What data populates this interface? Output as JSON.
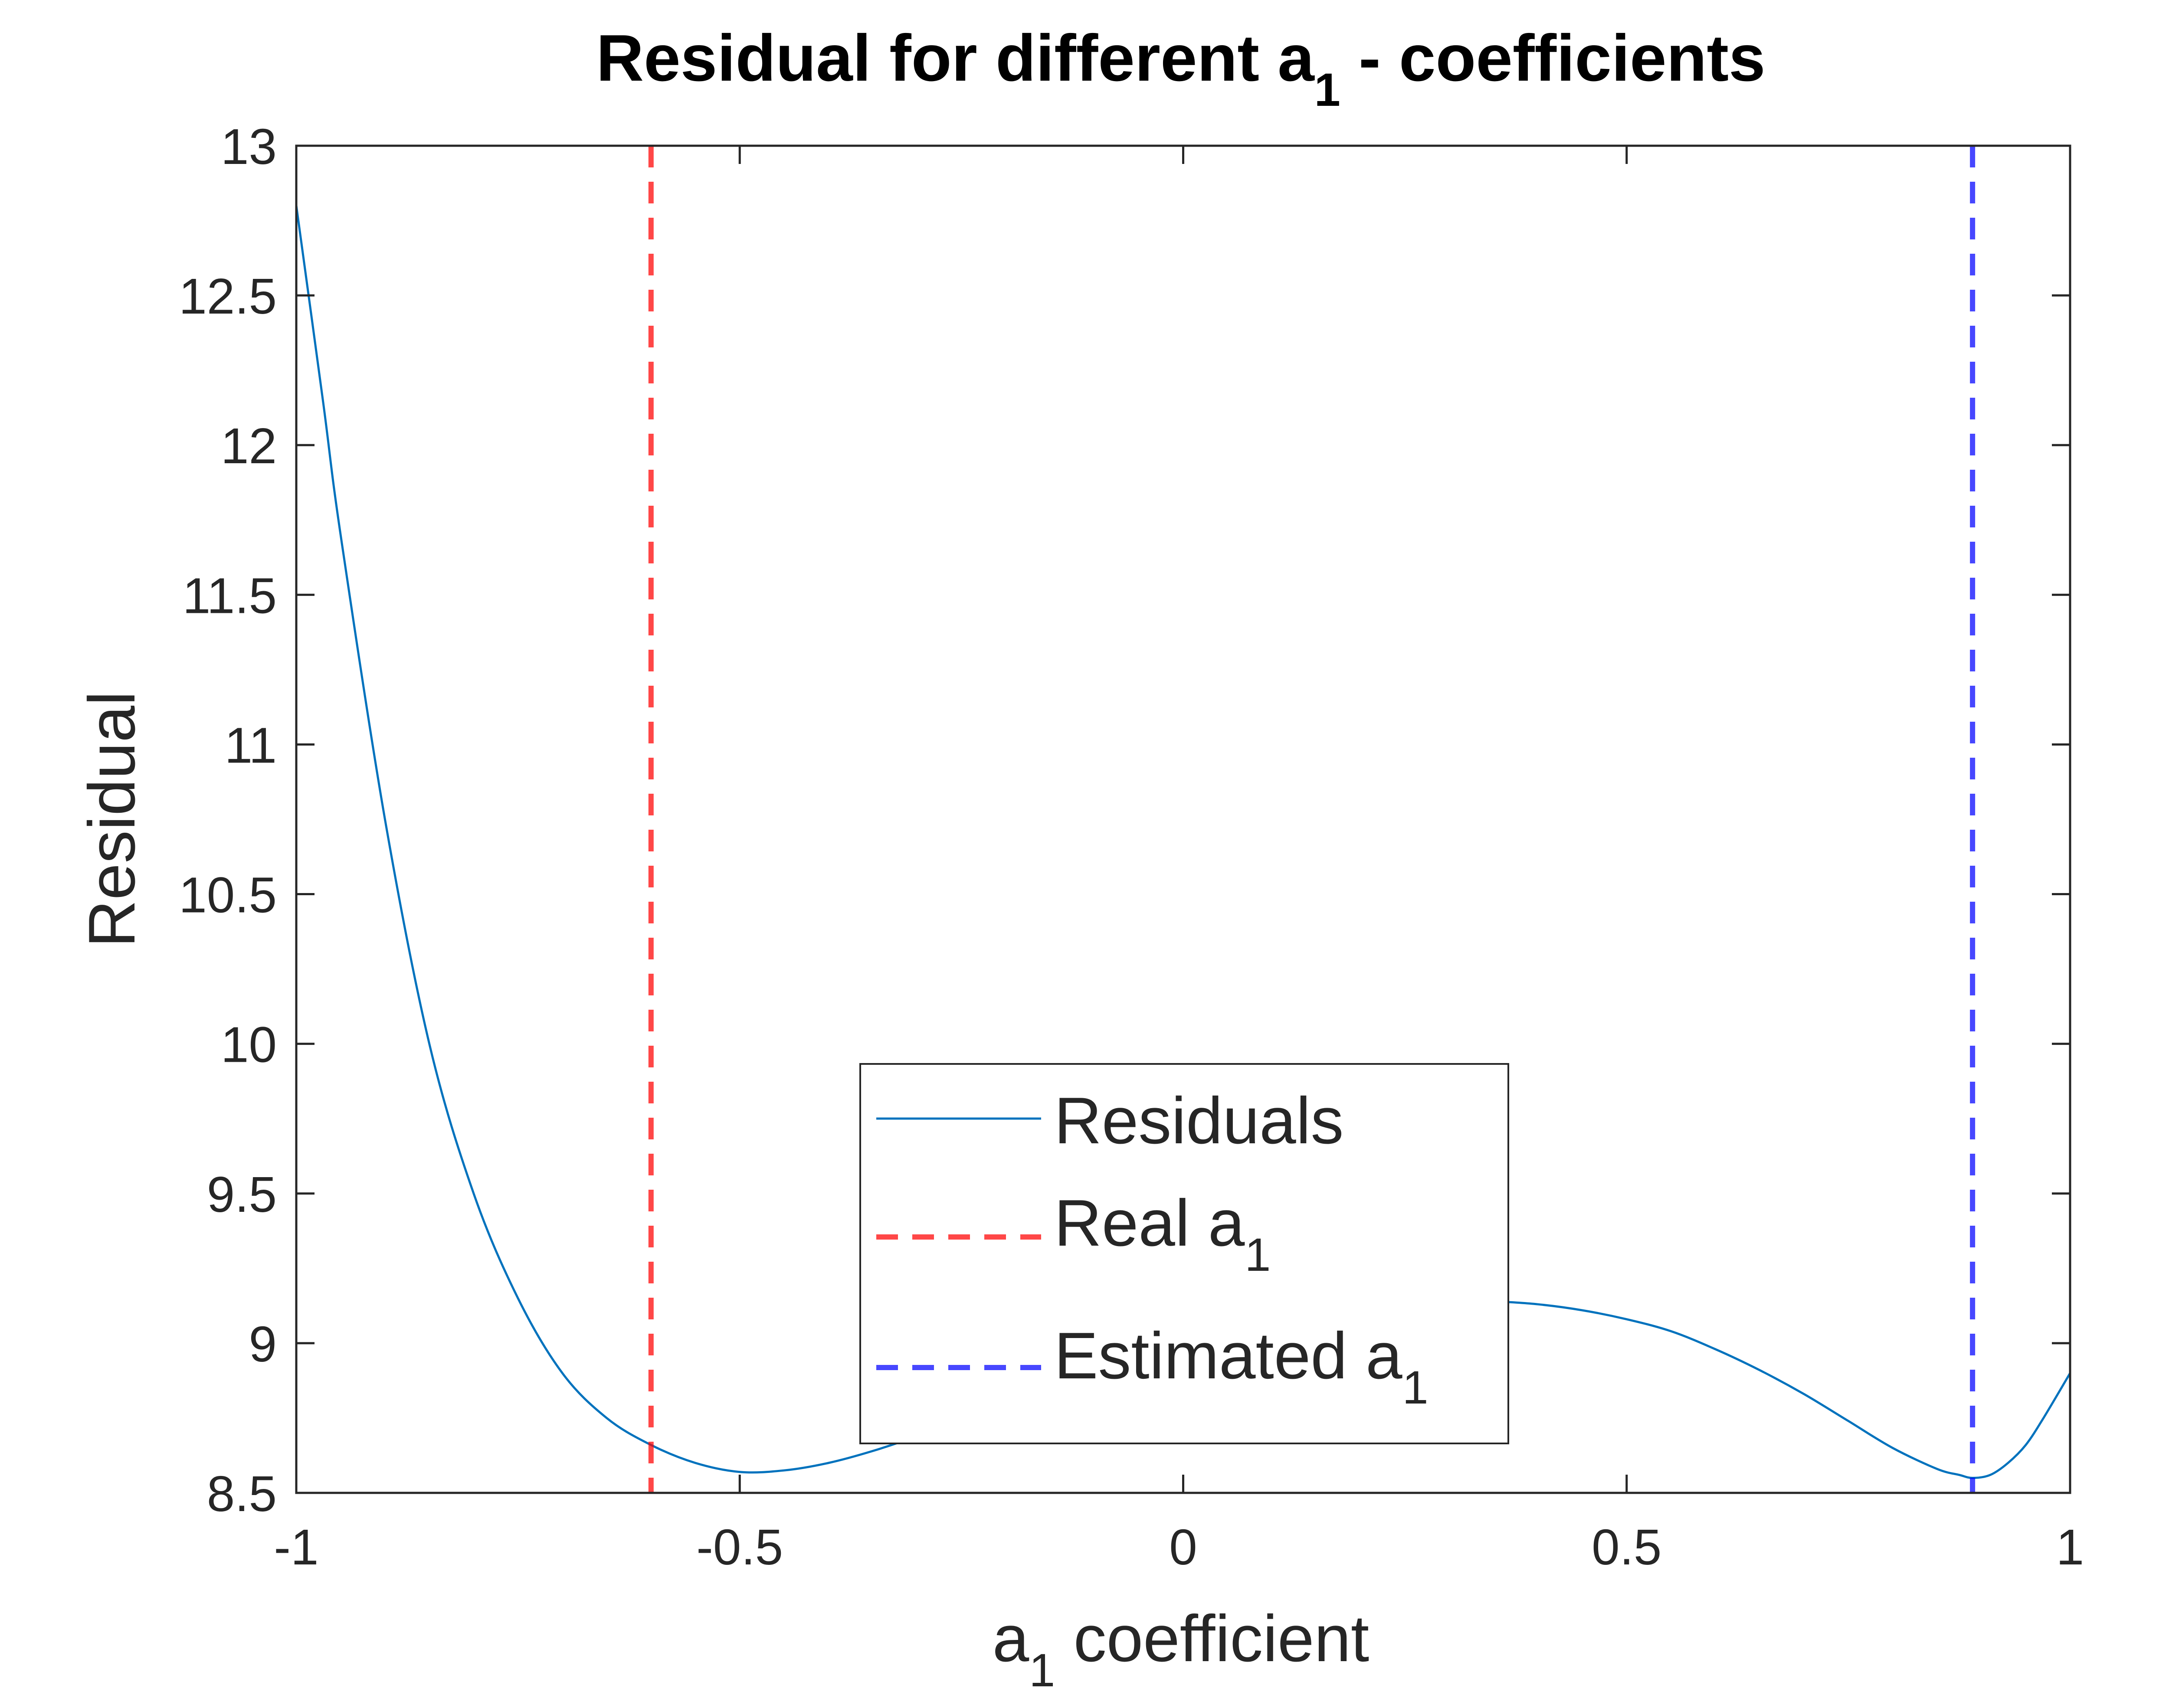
{
  "chart_data": {
    "type": "line",
    "title": "Residual for different a",
    "title_subscript": "1",
    "title_suffix": " - coefficients",
    "xlabel": "a",
    "xlabel_subscript": "1",
    "xlabel_suffix": " coefficient",
    "ylabel": "Residual",
    "xlim": [
      -1,
      1
    ],
    "ylim": [
      8.5,
      13
    ],
    "xticks": [
      -1,
      -0.5,
      0,
      0.5,
      1
    ],
    "xtick_labels": [
      "-1",
      "-0.5",
      "0",
      "0.5",
      "1"
    ],
    "yticks": [
      8.5,
      9,
      9.5,
      10,
      10.5,
      11,
      11.5,
      12,
      12.5,
      13
    ],
    "ytick_labels": [
      "8.5",
      "9",
      "9.5",
      "10",
      "10.5",
      "11",
      "11.5",
      "12",
      "12.5",
      "13"
    ],
    "grid": false,
    "legend_position": "bottom-center",
    "series": [
      {
        "name": "Residuals",
        "color": "#0072BD",
        "style": "solid",
        "x": [
          -1.0,
          -0.97,
          -0.95,
          -0.9,
          -0.85,
          -0.8,
          -0.75,
          -0.7,
          -0.65,
          -0.6,
          -0.55,
          -0.5,
          -0.45,
          -0.4,
          -0.35,
          -0.3,
          -0.25,
          -0.2,
          -0.15,
          -0.1,
          -0.05,
          0.0,
          0.05,
          0.1,
          0.15,
          0.2,
          0.25,
          0.3,
          0.35,
          0.4,
          0.45,
          0.5,
          0.55,
          0.6,
          0.65,
          0.7,
          0.75,
          0.8,
          0.85,
          0.875,
          0.89,
          0.91,
          0.93,
          0.95,
          0.97,
          1.0
        ],
        "y": [
          12.8,
          12.15,
          11.7,
          10.75,
          10.0,
          9.5,
          9.15,
          8.9,
          8.75,
          8.66,
          8.6,
          8.57,
          8.575,
          8.6,
          8.64,
          8.69,
          8.75,
          8.81,
          8.87,
          8.93,
          8.99,
          9.04,
          9.08,
          9.11,
          9.13,
          9.14,
          9.145,
          9.145,
          9.14,
          9.13,
          9.11,
          9.08,
          9.04,
          8.98,
          8.91,
          8.83,
          8.74,
          8.65,
          8.58,
          8.56,
          8.55,
          8.56,
          8.6,
          8.66,
          8.75,
          8.9
        ]
      },
      {
        "name": "Real a",
        "name_subscript": "1",
        "color": "#FF0000",
        "style": "dashed",
        "x_value": -0.6
      },
      {
        "name": "Estimated a",
        "name_subscript": "1",
        "color": "#0000FF",
        "style": "dashed",
        "x_value": 0.89
      }
    ]
  }
}
